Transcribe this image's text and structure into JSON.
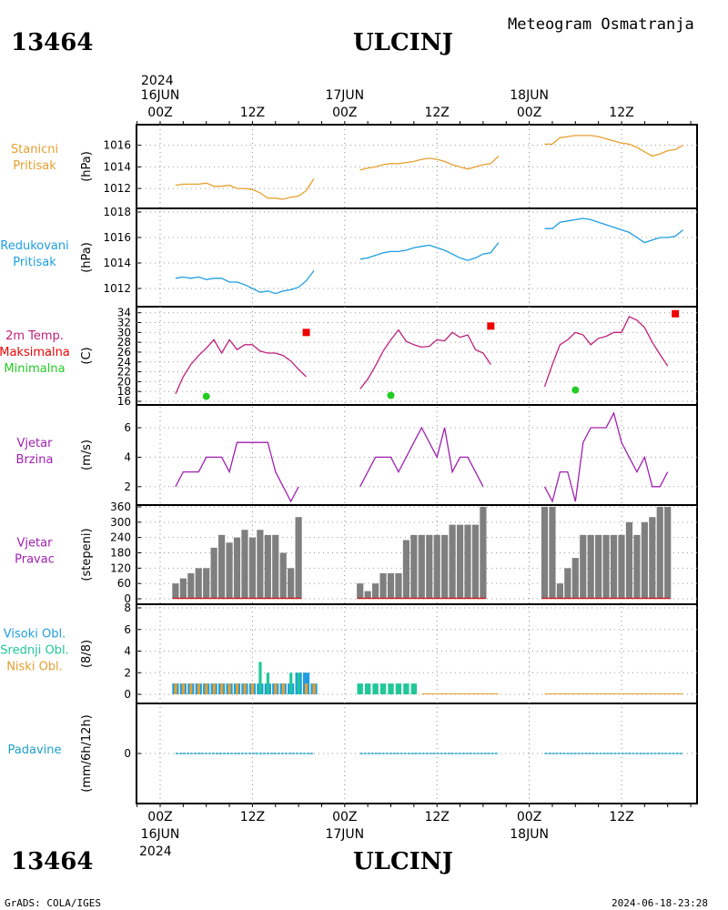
{
  "header": {
    "title": "Meteogram Osmatranja",
    "station_id": "13464",
    "station_name": "ULCINJ",
    "year_top": "2024",
    "year_bottom": "2024"
  },
  "footer": {
    "credit": "GrADS: COLA/IGES",
    "timestamp": "2024-06-18-23:28"
  },
  "time_axis": {
    "top_dates": [
      "16JUN",
      "17JUN",
      "18JUN"
    ],
    "bottom_dates": [
      "16JUN",
      "17JUN",
      "18JUN"
    ],
    "hour_labels": [
      "00Z",
      "12Z",
      "00Z",
      "12Z",
      "00Z",
      "12Z"
    ]
  },
  "colors": {
    "station_pressure": "#e6a030",
    "reduced_pressure": "#1e9ee0",
    "temperature": "#c0207c",
    "max_temp": "#ee0000",
    "min_temp": "#22cc22",
    "wind": "#a020b0",
    "wind_dir_bar": "#7f7f7f",
    "wind_dir_base": "#cc2020",
    "cloud_high": "#1e9ee0",
    "cloud_mid": "#20c898",
    "cloud_low": "#e6a030",
    "precip": "#20a0c8"
  },
  "chart_data": [
    {
      "type": "line",
      "panel_labels": [
        "Stanicni",
        "Pritisak"
      ],
      "ylabel": "(hPa)",
      "ylim": [
        1011,
        1017.4
      ],
      "ticks": [
        1012,
        1014,
        1016
      ],
      "x_hours_from_16jun00z": [
        2,
        3,
        4,
        5,
        6,
        7,
        8,
        9,
        10,
        11,
        12,
        13,
        14,
        15,
        16,
        17,
        18,
        19,
        20
      ],
      "series": [
        {
          "values": [
            1012.3,
            1012.4,
            1012.4,
            1012.4,
            1012.5,
            1012.2,
            1012.2,
            1012.3,
            1012.0,
            1012.0,
            1011.9,
            1011.6,
            1011.1,
            1011.1,
            1011.0,
            1011.2,
            1011.3,
            1011.8,
            1012.9
          ]
        },
        {
          "x": [
            26,
            27,
            28,
            29,
            30,
            31,
            32,
            33,
            34,
            35,
            36,
            37,
            38,
            39,
            40,
            41,
            42,
            43,
            44
          ],
          "values": [
            1013.7,
            1013.9,
            1014.0,
            1014.2,
            1014.3,
            1014.3,
            1014.4,
            1014.5,
            1014.7,
            1014.8,
            1014.7,
            1014.5,
            1014.2,
            1014.0,
            1013.8,
            1014.0,
            1014.2,
            1014.3,
            1015.0
          ]
        },
        {
          "x": [
            50,
            51,
            52,
            53,
            54,
            55,
            56,
            57,
            58,
            59,
            60,
            61,
            62,
            63,
            64,
            65,
            66,
            67,
            68
          ],
          "values": [
            1016.1,
            1016.1,
            1016.7,
            1016.8,
            1016.9,
            1016.9,
            1016.9,
            1016.8,
            1016.6,
            1016.4,
            1016.2,
            1016.1,
            1015.8,
            1015.4,
            1015.0,
            1015.2,
            1015.5,
            1015.6,
            1016.0
          ]
        }
      ]
    },
    {
      "type": "line",
      "panel_labels": [
        "Redukovani",
        "Pritisak"
      ],
      "ylabel": "(hPa)",
      "ylim": [
        1011,
        1018
      ],
      "ticks": [
        1012,
        1014,
        1016,
        1018
      ],
      "series": [
        {
          "x": [
            2,
            3,
            4,
            5,
            6,
            7,
            8,
            9,
            10,
            11,
            12,
            13,
            14,
            15,
            16,
            17,
            18,
            19,
            20
          ],
          "values": [
            1012.8,
            1012.9,
            1012.8,
            1012.9,
            1012.7,
            1012.8,
            1012.8,
            1012.5,
            1012.5,
            1012.3,
            1012.0,
            1011.7,
            1011.8,
            1011.6,
            1011.8,
            1011.9,
            1012.1,
            1012.6,
            1013.4
          ]
        },
        {
          "x": [
            26,
            27,
            28,
            29,
            30,
            31,
            32,
            33,
            34,
            35,
            36,
            37,
            38,
            39,
            40,
            41,
            42,
            43,
            44
          ],
          "values": [
            1014.3,
            1014.4,
            1014.6,
            1014.8,
            1014.9,
            1014.9,
            1015.0,
            1015.2,
            1015.3,
            1015.4,
            1015.2,
            1015.0,
            1014.7,
            1014.4,
            1014.2,
            1014.4,
            1014.7,
            1014.8,
            1015.6
          ]
        },
        {
          "x": [
            50,
            51,
            52,
            53,
            54,
            55,
            56,
            57,
            58,
            59,
            60,
            61,
            62,
            63,
            64,
            65,
            66,
            67,
            68
          ],
          "values": [
            1016.7,
            1016.7,
            1017.2,
            1017.3,
            1017.4,
            1017.5,
            1017.4,
            1017.2,
            1017.0,
            1016.8,
            1016.6,
            1016.4,
            1016.0,
            1015.6,
            1015.8,
            1016.0,
            1016.0,
            1016.1,
            1016.6
          ]
        }
      ]
    },
    {
      "type": "line",
      "panel_labels": [
        "2m Temp.",
        "Maksimalna",
        "Minimalna"
      ],
      "ylabel": "(C)",
      "ylim": [
        16,
        34.5
      ],
      "ticks": [
        16,
        18,
        20,
        22,
        24,
        26,
        28,
        30,
        32,
        34
      ],
      "series": [
        {
          "x": [
            2,
            3,
            4,
            5,
            6,
            7,
            8,
            9,
            10,
            11,
            12,
            13,
            14,
            15,
            16,
            17,
            18,
            19,
            20
          ],
          "values": [
            17.5,
            21.0,
            23.5,
            25.3,
            26.8,
            28.5,
            25.8,
            28.5,
            26.5,
            27.5,
            27.5,
            26.2,
            25.8,
            25.8,
            25.3,
            24.2,
            22.5,
            21.0,
            null
          ]
        },
        {
          "x": [
            26,
            27,
            28,
            29,
            30,
            31,
            32,
            33,
            34,
            35,
            36,
            37,
            38,
            39,
            40,
            41,
            42,
            43,
            44
          ],
          "values": [
            18.5,
            20.5,
            23.2,
            26.2,
            28.5,
            30.5,
            28.2,
            27.5,
            27.0,
            27.2,
            28.5,
            28.3,
            30.0,
            29.0,
            29.5,
            26.5,
            25.8,
            23.5,
            null
          ]
        },
        {
          "x": [
            50,
            51,
            52,
            53,
            54,
            55,
            56,
            57,
            58,
            59,
            60,
            61,
            62,
            63,
            64,
            65,
            66,
            67,
            68
          ],
          "values": [
            19.0,
            23.5,
            27.5,
            28.5,
            30.0,
            29.5,
            27.5,
            28.8,
            29.2,
            30.0,
            30.0,
            33.2,
            32.5,
            31.0,
            28.0,
            25.5,
            23.2,
            null,
            null
          ]
        }
      ],
      "maxima": [
        {
          "x": 19,
          "value": 30.0
        },
        {
          "x": 43,
          "value": 31.3
        },
        {
          "x": 67,
          "value": 33.8
        }
      ],
      "minima": [
        {
          "x": 6,
          "value": 17.0
        },
        {
          "x": 30,
          "value": 17.2
        },
        {
          "x": 54,
          "value": 18.3
        }
      ]
    },
    {
      "type": "line",
      "panel_labels": [
        "Vjetar",
        "Brzina"
      ],
      "ylabel": "(m/s)",
      "ylim": [
        1,
        7.3
      ],
      "ticks": [
        2,
        4,
        6
      ],
      "series": [
        {
          "x": [
            2,
            3,
            4,
            5,
            6,
            7,
            8,
            9,
            10,
            11,
            12,
            13,
            14,
            15,
            16,
            17,
            18,
            19,
            20
          ],
          "values": [
            2,
            3,
            3,
            3,
            4,
            4,
            4,
            3,
            5,
            5,
            5,
            5,
            5,
            3,
            2,
            1,
            2,
            null,
            null
          ]
        },
        {
          "x": [
            26,
            27,
            28,
            29,
            30,
            31,
            32,
            33,
            34,
            35,
            36,
            37,
            38,
            39,
            40,
            41,
            42,
            43,
            44
          ],
          "values": [
            2,
            3,
            4,
            4,
            4,
            3,
            4,
            5,
            6,
            5,
            4,
            6,
            3,
            4,
            4,
            3,
            2,
            null,
            null
          ]
        },
        {
          "x": [
            50,
            51,
            52,
            53,
            54,
            55,
            56,
            57,
            58,
            59,
            60,
            61,
            62,
            63,
            64,
            65,
            66,
            67,
            68
          ],
          "values": [
            2,
            1,
            3,
            3,
            1,
            5,
            6,
            6,
            6,
            7,
            5,
            4,
            3,
            4,
            2,
            2,
            3,
            null,
            null
          ]
        }
      ]
    },
    {
      "type": "bar",
      "panel_labels": [
        "Vjetar",
        "Pravac"
      ],
      "ylabel": "(stepeni)",
      "ylim": [
        0,
        360
      ],
      "ticks": [
        0,
        60,
        120,
        180,
        240,
        300,
        360
      ],
      "series": [
        {
          "x": [
            2,
            3,
            4,
            5,
            6,
            7,
            8,
            9,
            10,
            11,
            12,
            13,
            14,
            15,
            16,
            17,
            18,
            19,
            20
          ],
          "values": [
            60,
            80,
            100,
            120,
            120,
            200,
            250,
            220,
            240,
            270,
            240,
            270,
            250,
            250,
            180,
            120,
            320,
            null,
            null
          ]
        },
        {
          "x": [
            26,
            27,
            28,
            29,
            30,
            31,
            32,
            33,
            34,
            35,
            36,
            37,
            38,
            39,
            40,
            41,
            42,
            43,
            44
          ],
          "values": [
            60,
            30,
            60,
            100,
            100,
            100,
            230,
            250,
            250,
            250,
            250,
            250,
            290,
            290,
            290,
            290,
            360,
            null,
            null
          ]
        },
        {
          "x": [
            50,
            51,
            52,
            53,
            54,
            55,
            56,
            57,
            58,
            59,
            60,
            61,
            62,
            63,
            64,
            65,
            66,
            67,
            68
          ],
          "values": [
            360,
            360,
            60,
            120,
            160,
            250,
            250,
            250,
            250,
            250,
            250,
            300,
            250,
            300,
            320,
            360,
            360,
            null,
            null
          ]
        }
      ]
    },
    {
      "type": "bar",
      "panel_labels": [
        "Visoki Obl.",
        "Srednji Obl.",
        "Niski Obl."
      ],
      "ylabel": "(8/8)",
      "ylim": [
        0,
        8
      ],
      "ticks": [
        0,
        2,
        4,
        6,
        8
      ],
      "series": [
        {
          "name": "Visoki Obl.",
          "x": [
            2,
            3,
            4,
            5,
            6,
            7,
            8,
            9,
            10,
            11,
            12,
            13,
            14,
            15,
            16,
            17,
            18,
            19,
            20
          ],
          "values": [
            1,
            1,
            1,
            1,
            1,
            1,
            1,
            1,
            1,
            1,
            1,
            1,
            1,
            1,
            1,
            1,
            2,
            2,
            1
          ]
        },
        {
          "name": "Srednji Obl.",
          "x": [
            26,
            27,
            28,
            29,
            30,
            31,
            32,
            33
          ],
          "values": [
            1,
            1,
            1,
            1,
            1,
            1,
            1,
            1
          ]
        },
        {
          "name": "Niski Obl.",
          "x": [
            2,
            3,
            4,
            5,
            6,
            7,
            8,
            9,
            10,
            11,
            12,
            13,
            14,
            15,
            16,
            17,
            18,
            19,
            20
          ],
          "values": [
            1,
            1,
            1,
            1,
            1,
            1,
            1,
            1,
            1,
            1,
            1,
            3,
            2,
            1,
            1,
            2,
            2,
            1,
            1
          ]
        }
      ]
    },
    {
      "type": "line",
      "panel_labels": [
        "Padavine"
      ],
      "ylabel": "(mm/6h/12h)",
      "ylim": [
        -1,
        1
      ],
      "ticks": [
        0
      ],
      "series": [
        {
          "x": [
            2,
            20
          ],
          "values": [
            0,
            0
          ]
        },
        {
          "x": [
            26,
            44
          ],
          "values": [
            0,
            0
          ]
        },
        {
          "x": [
            50,
            68
          ],
          "values": [
            0,
            0
          ]
        }
      ]
    }
  ]
}
